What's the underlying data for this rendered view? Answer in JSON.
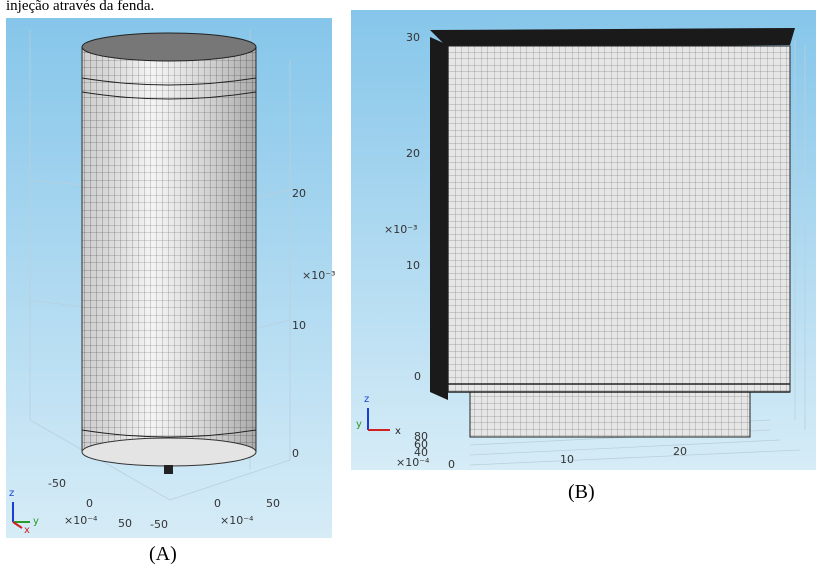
{
  "header": {
    "text": "injeção através da fenda."
  },
  "panels": [
    {
      "caption": "(A)",
      "tick_labels": [
        "20",
        "×10⁻³",
        "10",
        "0",
        "-50",
        "0",
        "×10⁻⁴",
        "50",
        "-50",
        "0",
        "×10⁻⁴",
        "50"
      ],
      "triad": [
        "z",
        "y",
        "x"
      ]
    },
    {
      "caption": "(B)",
      "tick_labels": [
        "30",
        "20",
        "×10⁻³",
        "10",
        "0",
        "80",
        "60",
        "40",
        "×10⁻⁴",
        "0",
        "10",
        "20"
      ],
      "triad": [
        "z",
        "y",
        "x"
      ]
    }
  ]
}
